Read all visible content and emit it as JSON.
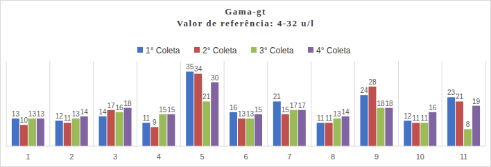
{
  "chart_data": {
    "type": "bar",
    "title": "Gama-gt",
    "subtitle": "Valor de referência: 4-32 u/l",
    "categories": [
      "1",
      "2",
      "3",
      "4",
      "5",
      "6",
      "7",
      "8",
      "9",
      "10",
      "11"
    ],
    "series": [
      {
        "name": "1° Coleta",
        "color": "#4472c4",
        "values": [
          13,
          12,
          14,
          11,
          35,
          16,
          21,
          11,
          24,
          12,
          23
        ]
      },
      {
        "name": "2° Coleta",
        "color": "#c0504d",
        "values": [
          10,
          11,
          17,
          9,
          34,
          13,
          15,
          11,
          28,
          11,
          21
        ]
      },
      {
        "name": "3° Coleta",
        "color": "#9bbb59",
        "values": [
          13,
          13,
          16,
          15,
          21,
          13,
          17,
          13,
          18,
          11,
          8
        ]
      },
      {
        "name": "4° Coleta",
        "color": "#8064a2",
        "values": [
          13,
          14,
          18,
          15,
          30,
          15,
          17,
          14,
          18,
          16,
          19
        ]
      }
    ],
    "ylim": [
      0,
      40
    ],
    "legend": "top",
    "data_labels": true,
    "tick_labels": "x",
    "grid": false
  }
}
